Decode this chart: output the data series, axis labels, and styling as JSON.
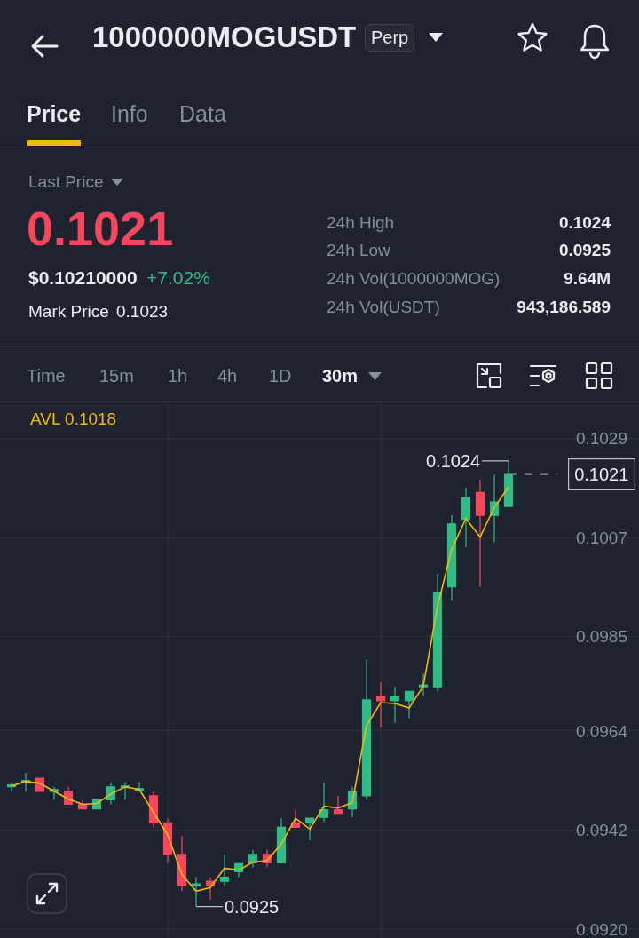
{
  "chart_data": {
    "type": "candlestick",
    "title": "1000000MOGUSDT",
    "categories": [
      null,
      null,
      null,
      null,
      null,
      null,
      null,
      null,
      null,
      null,
      null,
      null,
      null,
      null,
      null,
      null,
      null,
      null,
      null,
      null,
      null,
      null,
      null,
      null,
      null,
      null,
      null,
      null,
      null,
      null,
      null,
      null,
      null,
      null,
      null,
      null
    ],
    "ohlc": [
      [
        0.09516,
        0.09526,
        0.09506,
        0.0952
      ],
      [
        0.09526,
        0.09547,
        0.09506,
        0.0953
      ],
      [
        0.09535,
        0.09535,
        0.09506,
        0.09506
      ],
      [
        0.09506,
        0.09516,
        0.09487,
        0.0951
      ],
      [
        0.09506,
        0.09516,
        0.09477,
        0.09477
      ],
      [
        0.09477,
        0.09487,
        0.09467,
        0.09467
      ],
      [
        0.09467,
        0.09487,
        0.09467,
        0.09487
      ],
      [
        0.09487,
        0.09526,
        0.09477,
        0.09516
      ],
      [
        0.09514,
        0.09526,
        0.09487,
        0.09518
      ],
      [
        0.09508,
        0.09526,
        0.09506,
        0.09512
      ],
      [
        0.09496,
        0.09506,
        0.09426,
        0.09436
      ],
      [
        0.09436,
        0.09446,
        0.09347,
        0.09366
      ],
      [
        0.09366,
        0.09407,
        0.09284,
        0.09296
      ],
      [
        0.09296,
        0.09315,
        0.0925,
        0.093
      ],
      [
        0.09306,
        0.09315,
        0.09265,
        0.09296
      ],
      [
        0.09306,
        0.09366,
        0.09294,
        0.09315
      ],
      [
        0.09327,
        0.09345,
        0.09315,
        0.09345
      ],
      [
        0.09347,
        0.09376,
        0.09337,
        0.09366
      ],
      [
        0.09366,
        0.09376,
        0.09337,
        0.09347
      ],
      [
        0.09347,
        0.09446,
        0.09347,
        0.09426
      ],
      [
        0.09436,
        0.09465,
        0.09426,
        0.09426
      ],
      [
        0.09436,
        0.09446,
        0.09397,
        0.09446
      ],
      [
        0.09448,
        0.09526,
        0.09438,
        0.09465
      ],
      [
        0.09465,
        0.09496,
        0.09457,
        0.09457
      ],
      [
        0.09467,
        0.09516,
        0.09448,
        0.09506
      ],
      [
        0.09496,
        0.09798,
        0.09487,
        0.09709
      ],
      [
        0.09716,
        0.09748,
        0.09648,
        0.09707
      ],
      [
        0.09707,
        0.09738,
        0.09658,
        0.09716
      ],
      [
        0.09707,
        0.09728,
        0.09668,
        0.09728
      ],
      [
        0.09738,
        0.09767,
        0.09718,
        0.09742
      ],
      [
        0.09738,
        0.09989,
        0.09728,
        0.09948
      ],
      [
        0.0996,
        0.10119,
        0.09929,
        0.101
      ],
      [
        0.1011,
        0.1018,
        0.10049,
        0.10158
      ],
      [
        0.1017,
        0.10199,
        0.0996,
        0.10119
      ],
      [
        0.10119,
        0.10209,
        0.10059,
        0.10149
      ],
      [
        0.10139,
        0.1024,
        0.10139,
        0.1021
      ]
    ],
    "colors": [
      "#2ebd85",
      "#2ebd85",
      "#f6465d",
      "#2ebd85",
      "#f6465d",
      "#f6465d",
      "#2ebd85",
      "#2ebd85",
      "#2ebd85",
      "#2ebd85",
      "#f6465d",
      "#f6465d",
      "#f6465d",
      "#2ebd85",
      "#f6465d",
      "#2ebd85",
      "#2ebd85",
      "#2ebd85",
      "#f6465d",
      "#2ebd85",
      "#f6465d",
      "#2ebd85",
      "#2ebd85",
      "#f6465d",
      "#2ebd85",
      "#2ebd85",
      "#f6465d",
      "#2ebd85",
      "#2ebd85",
      "#2ebd85",
      "#2ebd85",
      "#2ebd85",
      "#2ebd85",
      "#f6465d",
      "#2ebd85",
      "#2ebd85"
    ],
    "series": [
      {
        "name": "AVL 0.1018",
        "type": "line",
        "color": "#f0b90b",
        "values": [
          0.09518,
          0.09528,
          0.09524,
          0.09506,
          0.09489,
          0.09477,
          0.09479,
          0.095,
          0.09516,
          0.0951,
          0.09459,
          0.09409,
          0.09321,
          0.09284,
          0.09292,
          0.09335,
          0.09331,
          0.09348,
          0.09352,
          0.09389,
          0.09446,
          0.09422,
          0.09473,
          0.09469,
          0.09481,
          0.09652,
          0.09703,
          0.09701,
          0.09691,
          0.0974,
          0.09917,
          0.10044,
          0.10112,
          0.10071,
          0.10137,
          0.10182
        ]
      }
    ],
    "ylim": [
      0.0918,
      0.1037
    ],
    "yticks": [
      {
        "value": 0.092,
        "label": "0.0920"
      },
      0.0942,
      0.0964,
      0.0985,
      0.1007,
      0.1029
    ],
    "grid": true,
    "tick_labels": "y",
    "ref_lines": [
      {
        "axis": "y",
        "value": 0.1021,
        "label": "0.1021",
        "line_style": "dashed",
        "color": "#848e9c"
      }
    ],
    "annotations": [
      "Perp",
      "Price",
      "Info",
      "Data",
      "Last Price",
      "0.1021",
      "$0.10210000",
      "+7.02%",
      "Mark Price",
      "0.1023",
      "24h High",
      "0.1024",
      "24h Low",
      "0.0925",
      "24h Vol(1000000MOG)",
      "9.64M",
      "24h Vol(USDT)",
      "943,186.589",
      "Time",
      "15m",
      "1h",
      "4h",
      "1D",
      "30m",
      "0.1024",
      "0.0925"
    ]
  }
}
